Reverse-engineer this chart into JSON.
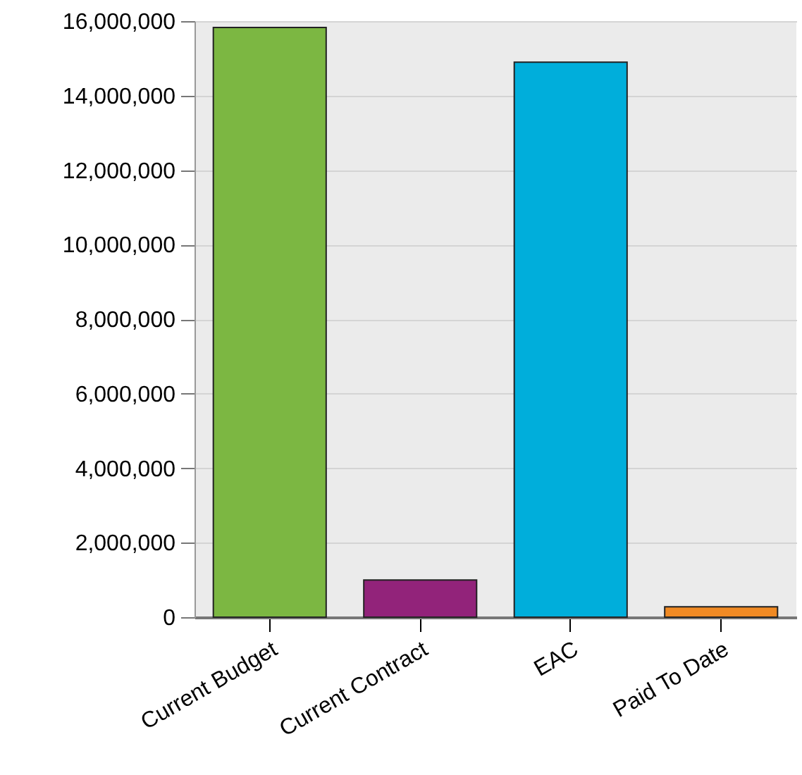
{
  "chart_data": {
    "type": "bar",
    "categories": [
      "Current Budget",
      "Current Contract",
      "EAC",
      "Paid To Date"
    ],
    "values": [
      15830000,
      1000000,
      14900000,
      280000
    ],
    "colors": [
      "#7cb742",
      "#92237a",
      "#00aedb",
      "#f08a24"
    ],
    "ylim": [
      0,
      16000000
    ],
    "yticks": [
      0,
      {
        "value": 2000000,
        "label": "2,000,000"
      },
      {
        "value": 4000000,
        "label": "4,000,000"
      },
      {
        "value": 6000000,
        "label": "6,000,000"
      },
      {
        "value": 8000000,
        "label": "8,000,000"
      },
      {
        "value": 10000000,
        "label": "10,000,000"
      },
      {
        "value": 12000000,
        "label": "12,000,000"
      },
      {
        "value": 14000000,
        "label": "14,000,000"
      },
      {
        "value": 16000000,
        "label": "16,000,000"
      }
    ],
    "grid": "y"
  }
}
